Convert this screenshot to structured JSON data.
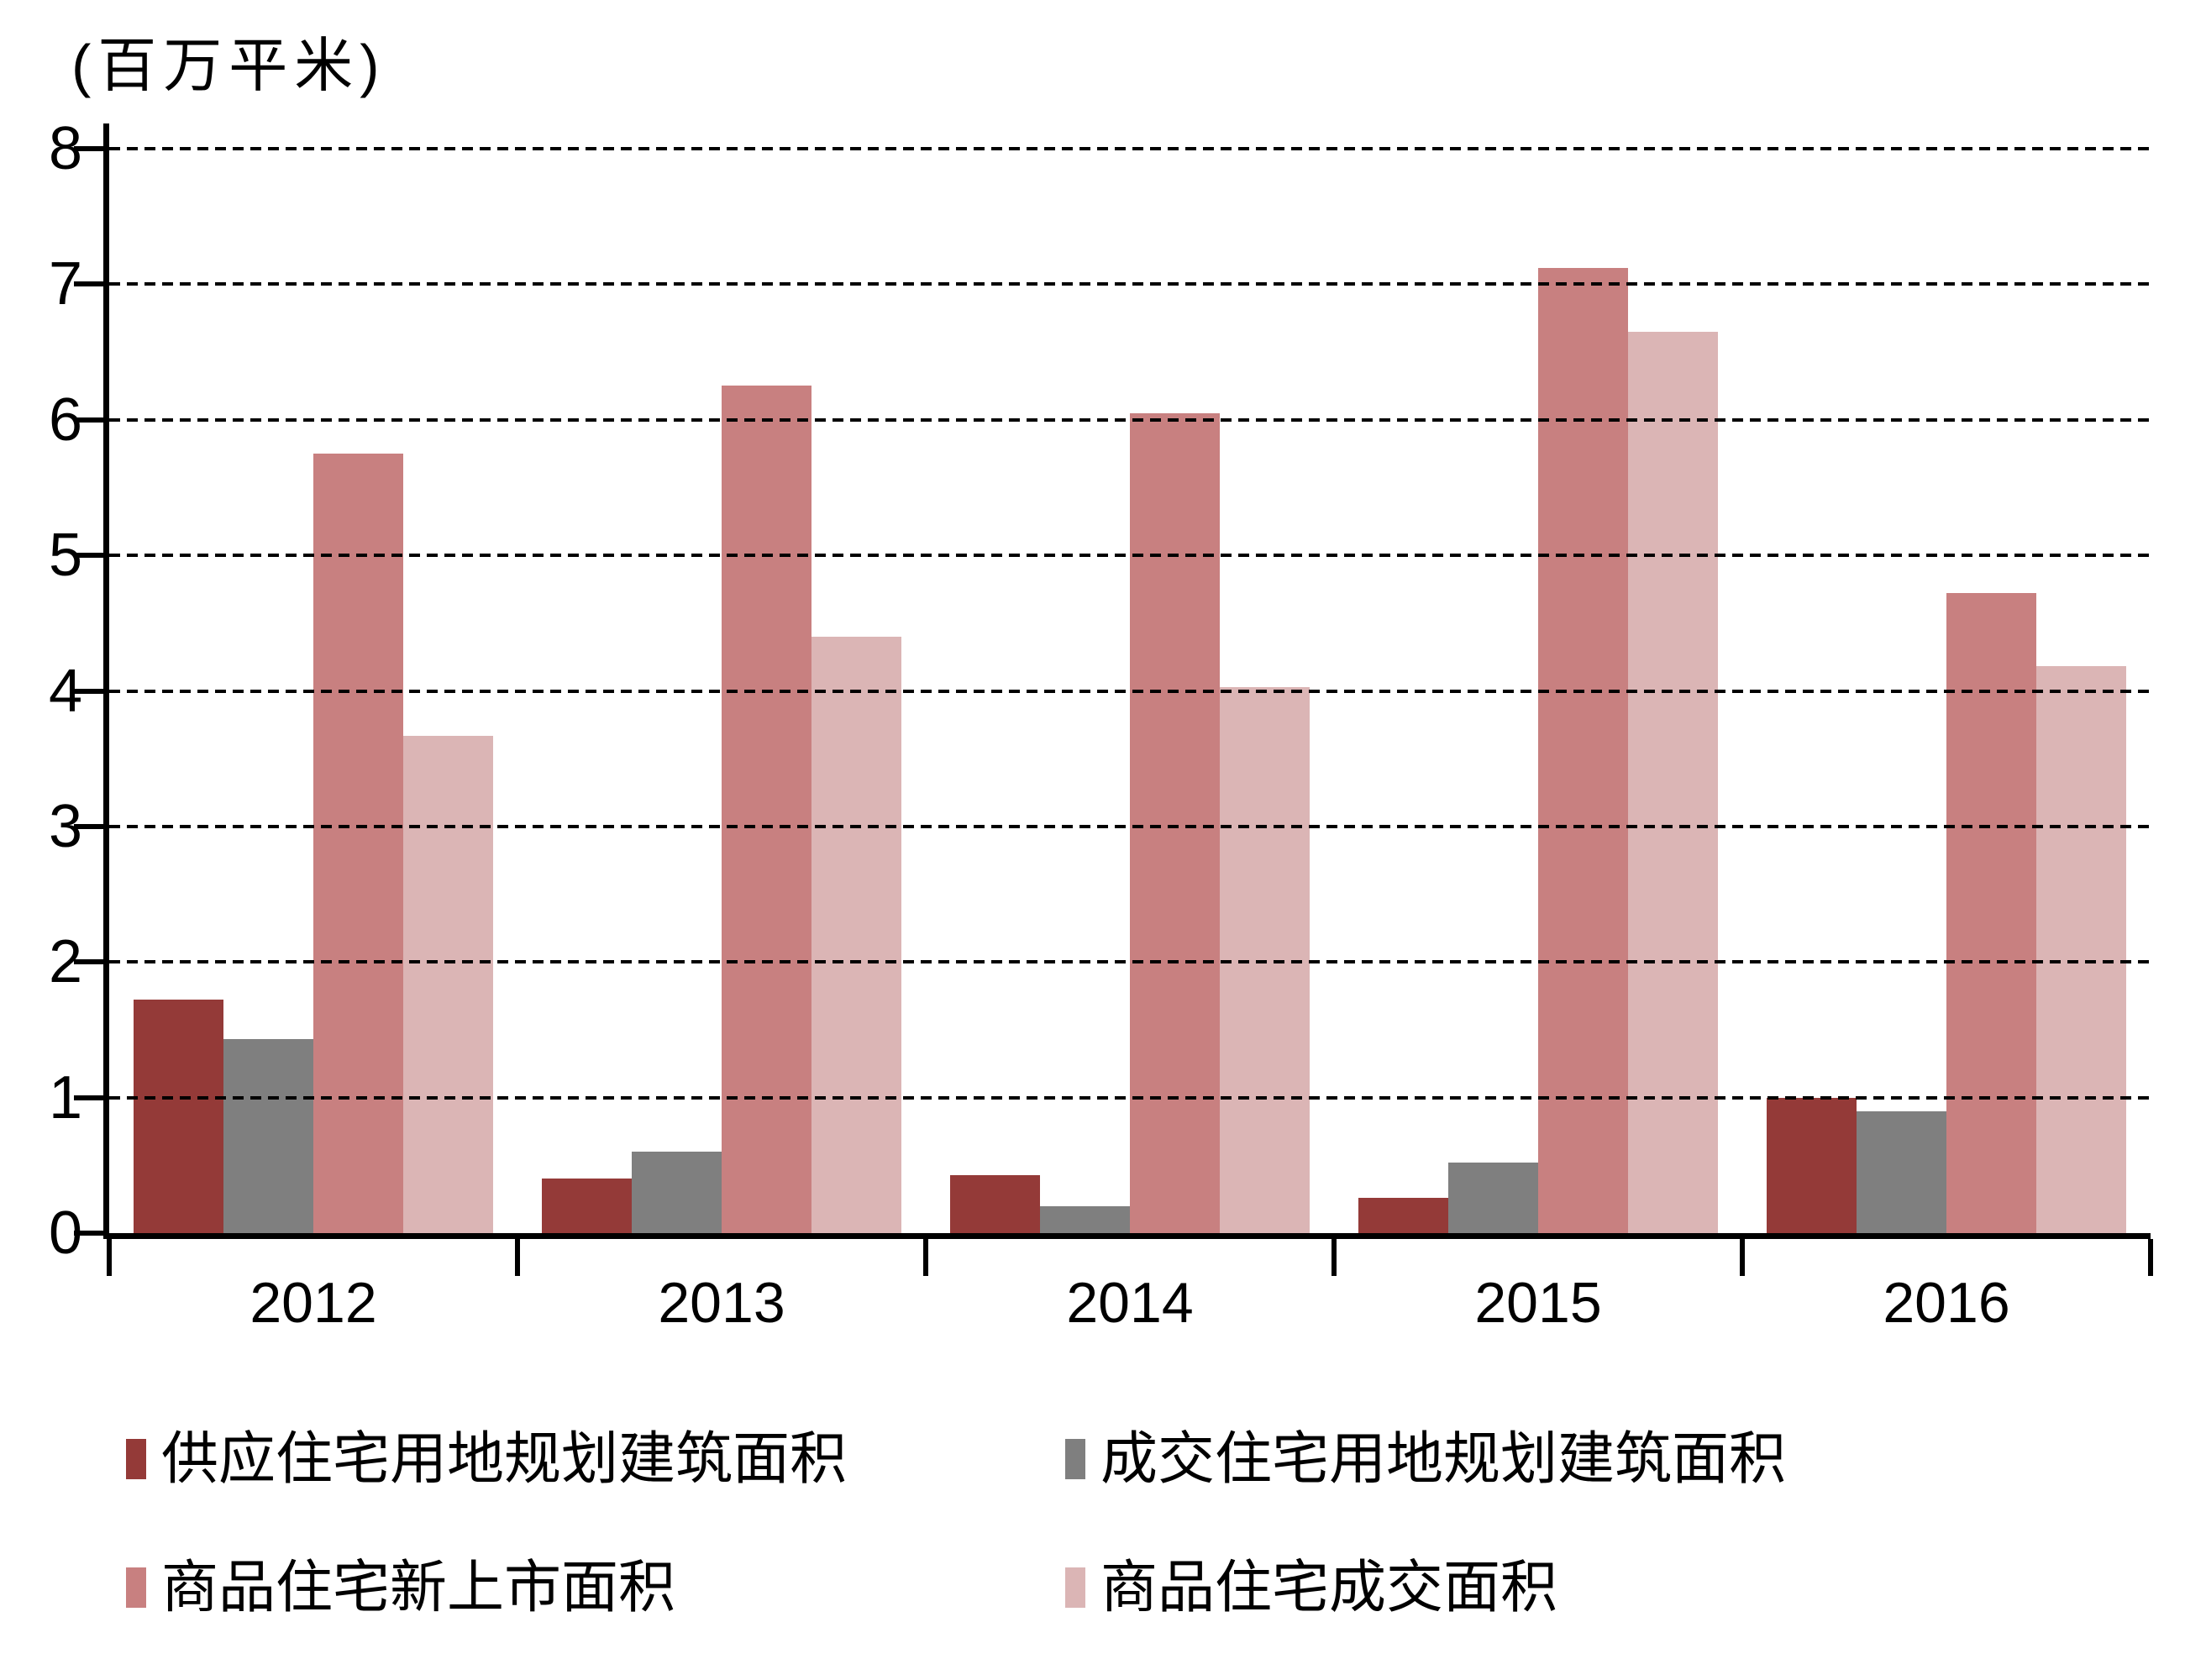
{
  "unit_label": "(百万平米)",
  "chart_data": {
    "type": "bar",
    "title": "",
    "ylabel": "(百万平米)",
    "xlabel": "",
    "categories": [
      "2012",
      "2013",
      "2014",
      "2015",
      "2016"
    ],
    "series": [
      {
        "name": "供应住宅用地规划建筑面积",
        "color": "#943A38",
        "values": [
          1.72,
          0.4,
          0.43,
          0.26,
          1.0
        ]
      },
      {
        "name": "成交住宅用地规划建筑面积",
        "color": "#7F7F7F",
        "values": [
          1.43,
          0.6,
          0.2,
          0.52,
          0.9
        ]
      },
      {
        "name": "商品住宅新上市面积",
        "color": "#C88080",
        "values": [
          5.75,
          6.25,
          6.05,
          7.12,
          4.72
        ]
      },
      {
        "name": "商品住宅成交面积",
        "color": "#DBB5B5",
        "values": [
          3.67,
          4.4,
          4.03,
          6.65,
          4.18
        ]
      }
    ],
    "ylim": [
      0,
      8
    ],
    "yticks": [
      0,
      1,
      2,
      3,
      4,
      5,
      6,
      7,
      8
    ],
    "grid": "horizontal-dashed",
    "legend_position": "bottom",
    "axis_color": "#000000",
    "background_color": "#FFFFFF"
  }
}
